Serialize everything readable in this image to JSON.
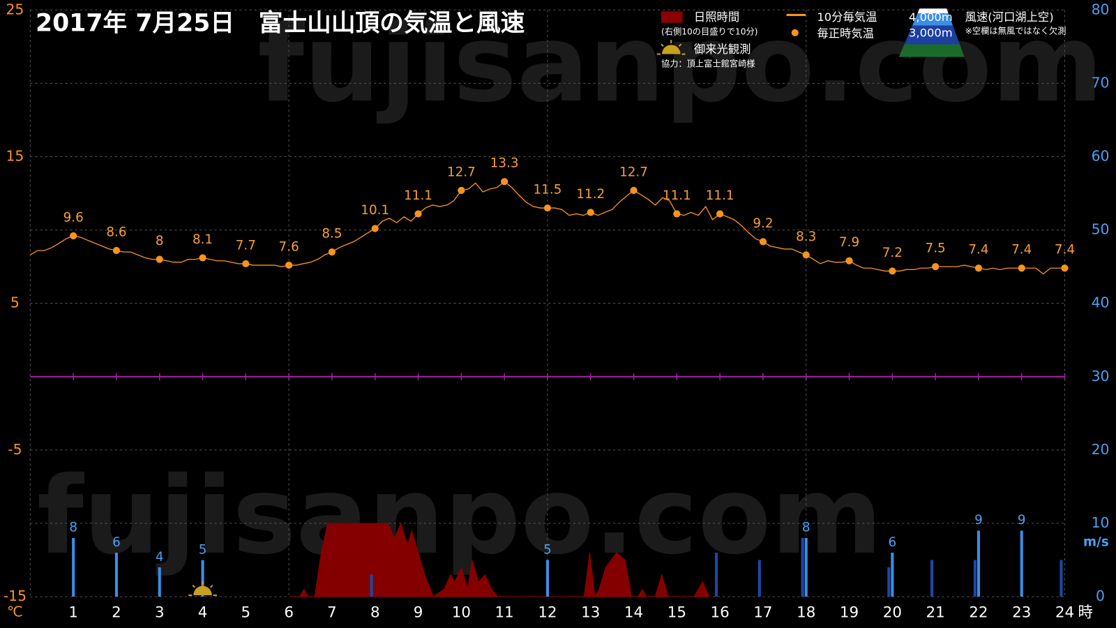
{
  "chart_data": {
    "type": "line",
    "title": "2017年  7月25日　富士山山頂の気温と風速",
    "watermark": "fujisanpo.com",
    "xlim": [
      0,
      24
    ],
    "xticks": [
      1,
      2,
      3,
      4,
      5,
      6,
      7,
      8,
      9,
      10,
      11,
      12,
      13,
      14,
      15,
      16,
      17,
      18,
      19,
      20,
      21,
      22,
      23,
      24
    ],
    "x_unit": "時",
    "ylim": [
      -15,
      25
    ],
    "yticks": [
      -15,
      -5,
      5,
      15,
      25
    ],
    "y_unit": "℃",
    "y2lim": [
      0,
      80
    ],
    "y2ticks": [
      0,
      10,
      20,
      30,
      40,
      50,
      60,
      70,
      80
    ],
    "y2_unit": "m/s",
    "grid": true,
    "zero_line_color": "#a020a0",
    "series": [
      {
        "name": "10分毎気温",
        "type": "line",
        "color": "#f7941d",
        "x": [
          0,
          0.17,
          0.33,
          0.5,
          0.67,
          0.83,
          1,
          1.17,
          1.33,
          1.5,
          1.67,
          1.83,
          2,
          2.17,
          2.33,
          2.5,
          2.67,
          2.83,
          3,
          3.17,
          3.33,
          3.5,
          3.67,
          3.83,
          4,
          4.17,
          4.33,
          4.5,
          4.67,
          4.83,
          5,
          5.17,
          5.33,
          5.5,
          5.67,
          5.83,
          6,
          6.17,
          6.33,
          6.5,
          6.67,
          6.83,
          7,
          7.17,
          7.33,
          7.5,
          7.67,
          7.83,
          8,
          8.17,
          8.33,
          8.5,
          8.67,
          8.83,
          9,
          9.17,
          9.33,
          9.5,
          9.67,
          9.83,
          10,
          10.17,
          10.33,
          10.5,
          10.67,
          10.83,
          11,
          11.17,
          11.33,
          11.5,
          11.67,
          11.83,
          12,
          12.17,
          12.33,
          12.5,
          12.67,
          12.83,
          13,
          13.17,
          13.33,
          13.5,
          13.67,
          13.83,
          14,
          14.17,
          14.33,
          14.5,
          14.67,
          14.83,
          15,
          15.17,
          15.33,
          15.5,
          15.67,
          15.83,
          16,
          16.17,
          16.33,
          16.5,
          16.67,
          16.83,
          17,
          17.17,
          17.33,
          17.5,
          17.67,
          17.83,
          18,
          18.17,
          18.33,
          18.5,
          18.67,
          18.83,
          19,
          19.17,
          19.33,
          19.5,
          19.67,
          19.83,
          20,
          20.17,
          20.33,
          20.5,
          20.67,
          20.83,
          21,
          21.17,
          21.33,
          21.5,
          21.67,
          21.83,
          22,
          22.17,
          22.33,
          22.5,
          22.67,
          22.83,
          23,
          23.17,
          23.33,
          23.5,
          23.67,
          23.83,
          24
        ],
        "values": [
          8.3,
          8.6,
          8.6,
          8.8,
          9.1,
          9.4,
          9.6,
          9.5,
          9.3,
          9.1,
          8.9,
          8.7,
          8.6,
          8.5,
          8.5,
          8.3,
          8.1,
          8.0,
          8.0,
          7.9,
          7.8,
          7.8,
          8.0,
          8.0,
          8.1,
          8.0,
          7.9,
          7.9,
          7.8,
          7.7,
          7.7,
          7.6,
          7.6,
          7.6,
          7.6,
          7.5,
          7.6,
          7.6,
          7.7,
          7.8,
          8.0,
          8.3,
          8.5,
          8.8,
          9.0,
          9.2,
          9.5,
          9.8,
          10.1,
          10.6,
          10.8,
          10.5,
          10.9,
          10.6,
          11.1,
          11.5,
          11.7,
          11.6,
          11.7,
          12.0,
          12.7,
          12.8,
          13.2,
          12.6,
          12.8,
          12.9,
          13.3,
          12.9,
          12.4,
          11.9,
          11.6,
          11.5,
          11.5,
          11.5,
          11.4,
          11.0,
          11.1,
          11.0,
          11.2,
          11.0,
          11.2,
          11.4,
          11.9,
          12.3,
          12.7,
          12.4,
          12.1,
          11.7,
          12.2,
          12.0,
          11.1,
          11.0,
          11.2,
          11.0,
          11.6,
          10.7,
          11.1,
          10.9,
          10.7,
          10.3,
          9.8,
          9.4,
          9.2,
          8.9,
          8.8,
          8.7,
          8.7,
          8.5,
          8.3,
          8.0,
          7.7,
          7.9,
          7.8,
          7.8,
          7.9,
          7.6,
          7.4,
          7.4,
          7.3,
          7.2,
          7.2,
          7.2,
          7.3,
          7.3,
          7.4,
          7.4,
          7.5,
          7.5,
          7.5,
          7.5,
          7.6,
          7.5,
          7.4,
          7.3,
          7.4,
          7.3,
          7.4,
          7.4,
          7.4,
          7.4,
          7.4,
          7.0,
          7.4,
          7.4,
          7.4
        ]
      },
      {
        "name": "毎正時気温",
        "type": "scatter",
        "color": "#f7941d",
        "data_labels": true,
        "x": [
          1,
          2,
          3,
          4,
          5,
          6,
          7,
          8,
          9,
          10,
          11,
          12,
          13,
          14,
          15,
          16,
          17,
          18,
          19,
          20,
          21,
          22,
          23,
          24
        ],
        "values": [
          9.6,
          8.6,
          8,
          8.1,
          7.7,
          7.6,
          8.5,
          10.1,
          11.1,
          12.7,
          13.3,
          11.5,
          11.2,
          12.7,
          11.1,
          11.1,
          9.2,
          8.3,
          7.9,
          7.2,
          7.5,
          7.4,
          7.4,
          7.4
        ]
      },
      {
        "name": "日照時間",
        "legend_note": "(右側10の目盛りで10分)",
        "type": "area",
        "axis": "y2",
        "color": "#8b0000",
        "x": [
          6.0,
          6.25,
          6.35,
          6.45,
          6.6,
          6.75,
          6.9,
          8.3,
          8.45,
          8.6,
          8.75,
          8.85,
          9.0,
          9.15,
          9.35,
          9.6,
          9.75,
          9.85,
          10.0,
          10.15,
          10.25,
          10.4,
          10.55,
          10.7,
          10.85,
          12.85,
          12.98,
          13.1,
          13.2,
          13.35,
          13.6,
          13.8,
          13.95,
          14.1,
          14.2,
          14.3,
          14.5,
          14.65,
          14.8,
          15.4,
          15.6,
          15.75
        ],
        "values": [
          0,
          0,
          1,
          0,
          0,
          6,
          10,
          10,
          8,
          10,
          7,
          9,
          6,
          3,
          0,
          1,
          3,
          2,
          4,
          1,
          5,
          2,
          3,
          1,
          0,
          0,
          6,
          0,
          1,
          4,
          6,
          5,
          0,
          0,
          1,
          0,
          0,
          3,
          0,
          0,
          2,
          0
        ]
      },
      {
        "name": "4,000m",
        "type": "bar",
        "axis": "y2",
        "color": "#3b8ee6",
        "data_labels": true,
        "x": [
          1,
          2,
          3,
          4,
          5,
          6,
          7,
          8,
          9,
          10,
          11,
          12,
          13,
          14,
          15,
          16,
          17,
          18,
          19,
          20,
          21,
          22,
          23,
          24
        ],
        "values": [
          8,
          6,
          4,
          5,
          null,
          null,
          null,
          null,
          null,
          null,
          null,
          5,
          null,
          null,
          null,
          null,
          null,
          8,
          null,
          6,
          null,
          9,
          9,
          null
        ]
      },
      {
        "name": "3,000m",
        "type": "bar",
        "axis": "y2",
        "color": "#1c48a8",
        "x": [
          1,
          2,
          3,
          4,
          5,
          6,
          7,
          8,
          9,
          10,
          11,
          12,
          13,
          14,
          15,
          16,
          17,
          18,
          19,
          20,
          21,
          22,
          23,
          24
        ],
        "values": [
          null,
          null,
          null,
          null,
          null,
          null,
          null,
          3,
          null,
          null,
          null,
          null,
          null,
          null,
          null,
          6,
          5,
          8,
          null,
          4,
          5,
          5,
          null,
          5
        ]
      }
    ],
    "wind_legend_title": "風速(河口湖上空)",
    "wind_note": "※空欄は無風ではなく欠測",
    "sunrise": {
      "label": "御来光観測",
      "x": 4
    },
    "credit": "協力：頂上富士館宮崎様"
  }
}
